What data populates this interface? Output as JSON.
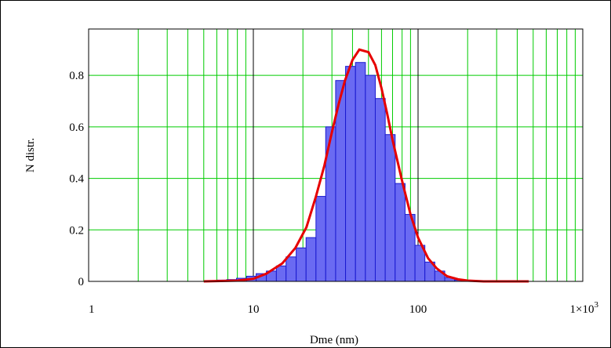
{
  "chart_data": {
    "type": "bar",
    "xlabel": "Dme (nm)",
    "ylabel": "N distr.",
    "xscale": "log",
    "xlim": [
      1,
      1000
    ],
    "ylim": [
      0,
      0.98
    ],
    "grid": true,
    "x_ticks": [
      {
        "value": 1,
        "label": "1"
      },
      {
        "value": 10,
        "label": "10"
      },
      {
        "value": 100,
        "label": "100"
      },
      {
        "value": 1000,
        "label": "1×10",
        "exponent": "3"
      }
    ],
    "y_ticks": [
      {
        "value": 0,
        "label": "0"
      },
      {
        "value": 0.2,
        "label": "0.2"
      },
      {
        "value": 0.4,
        "label": "0.4"
      },
      {
        "value": 0.6,
        "label": "0.6"
      },
      {
        "value": 0.8,
        "label": "0.8"
      }
    ],
    "bin_edges": [
      6.0,
      6.9,
      7.9,
      9.1,
      10.4,
      12.0,
      13.8,
      15.8,
      18.2,
      20.9,
      24.0,
      27.5,
      31.6,
      36.3,
      41.7,
      47.9,
      55.0,
      63.2,
      72.6,
      83.4,
      95.8,
      110.0,
      126.4,
      145.2,
      166.8,
      191.6
    ],
    "values": [
      0.005,
      0.007,
      0.012,
      0.02,
      0.03,
      0.04,
      0.06,
      0.095,
      0.13,
      0.17,
      0.33,
      0.6,
      0.78,
      0.835,
      0.85,
      0.8,
      0.71,
      0.57,
      0.38,
      0.26,
      0.14,
      0.075,
      0.04,
      0.015,
      0.005
    ],
    "series": [
      {
        "type": "line",
        "x": [
          5.0,
          8.0,
          10.0,
          12.0,
          15.0,
          18.0,
          21.0,
          24.0,
          27.0,
          30.0,
          33.0,
          36.0,
          40.0,
          44.0,
          50.0,
          55.0,
          60.0,
          65.0,
          70.0,
          80.0,
          90.0,
          100.0,
          115.0,
          130.0,
          150.0,
          175.0,
          200.0,
          250.0,
          300.0,
          400.0,
          470.0
        ],
        "y": [
          0.0,
          0.003,
          0.01,
          0.03,
          0.07,
          0.13,
          0.21,
          0.33,
          0.45,
          0.58,
          0.69,
          0.78,
          0.86,
          0.9,
          0.89,
          0.84,
          0.75,
          0.65,
          0.55,
          0.39,
          0.26,
          0.17,
          0.09,
          0.05,
          0.02,
          0.008,
          0.003,
          0.0,
          0.0,
          0.0,
          0.0
        ]
      }
    ],
    "colors": {
      "bars": "#6a6af2",
      "bar_edge": "#1a1ad0",
      "curve": "#e60000",
      "grid": "#00cc00",
      "decade_lines": "#000000"
    }
  }
}
